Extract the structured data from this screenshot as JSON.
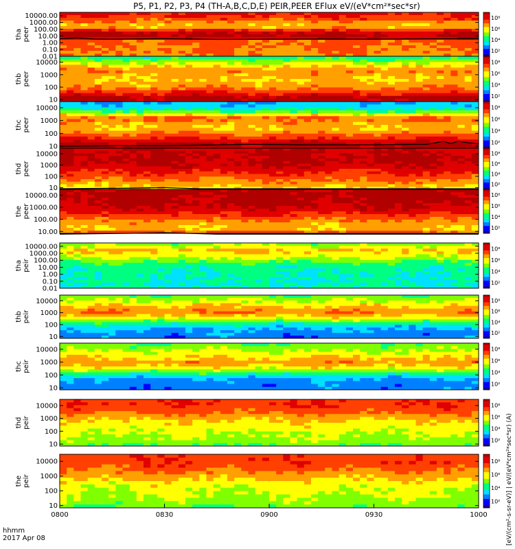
{
  "chart_data": {
    "type": "heatmap",
    "title": "P5, P1, P2, P3, P4 (TH-A,B,C,D,E) PEIR,PEER EFlux eV/(eV*cm²*sec*sr)",
    "time_axis": {
      "ticks": [
        "0800",
        "0830",
        "0900",
        "0930",
        "1000"
      ],
      "range": [
        "08:00",
        "10:00"
      ],
      "label_line1": "hhmm",
      "label_line2": "2017 Apr 08"
    },
    "colorbar": {
      "ticks": [
        "10⁸",
        "10⁶",
        "10⁴",
        "10²"
      ],
      "log_range": [
        1,
        9
      ],
      "side_label": "[eV/(cm²-s-sr-eV)] | eV/(eV*cm²*sec*sr) (A)"
    },
    "colormap": [
      "#1a0080",
      "#0000ff",
      "#0080ff",
      "#00e0ff",
      "#00ff80",
      "#80ff00",
      "#ffff00",
      "#ffa000",
      "#ff4000",
      "#e00000",
      "#b00000"
    ],
    "panels": [
      {
        "label1": "tha",
        "label2": "peer",
        "y_ticks": [
          "10000.00",
          "1000.00",
          "100.00",
          "10.00",
          "1.00",
          "0.10",
          "0.01"
        ],
        "ylim": [
          0.01,
          30000
        ],
        "profile": [
          [
            0.01,
            6.8
          ],
          [
            2.5,
            7.2
          ],
          [
            3.5,
            8.2
          ],
          [
            10,
            8.8
          ],
          [
            40,
            8.6
          ],
          [
            120,
            7.0
          ],
          [
            250,
            6.2
          ],
          [
            600,
            6.4
          ],
          [
            2500,
            7.4
          ],
          [
            12000,
            7.8
          ],
          [
            30000,
            8.2
          ]
        ],
        "overlay": {
          "x": [
            0,
            5,
            10,
            15,
            20,
            30,
            45,
            60,
            75,
            90,
            105,
            120
          ],
          "y": [
            4.0,
            5.0,
            3.5,
            3.2,
            3.5,
            4.0,
            3.0,
            3.2,
            3.5,
            3.3,
            3.8,
            4.0
          ]
        }
      },
      {
        "label1": "thb",
        "label2": "peer",
        "y_ticks": [
          "10000",
          "1000",
          "100",
          "10"
        ],
        "ylim": [
          7,
          30000
        ],
        "profile": [
          [
            7,
            9.0
          ],
          [
            15,
            8.8
          ],
          [
            40,
            7.6
          ],
          [
            120,
            6.7
          ],
          [
            300,
            6.2
          ],
          [
            800,
            6.4
          ],
          [
            2000,
            6.9
          ],
          [
            5000,
            6.1
          ],
          [
            12000,
            5.0
          ],
          [
            30000,
            4.0
          ]
        ]
      },
      {
        "label1": "thc",
        "label2": "peer",
        "y_ticks": [
          "10000",
          "1000",
          "100",
          "10"
        ],
        "ylim": [
          7,
          30000
        ],
        "profile": [
          [
            7,
            9.0
          ],
          [
            15,
            8.8
          ],
          [
            40,
            7.8
          ],
          [
            100,
            6.9
          ],
          [
            250,
            6.2
          ],
          [
            600,
            6.6
          ],
          [
            1500,
            7.2
          ],
          [
            4000,
            5.0
          ],
          [
            10000,
            3.4
          ],
          [
            30000,
            3.0
          ]
        ],
        "overlay": {
          "x": [
            0,
            15,
            30,
            45,
            55,
            70,
            90,
            105,
            110,
            112,
            114,
            120
          ],
          "y": [
            10,
            11,
            11,
            13,
            14,
            13,
            13,
            14,
            24,
            16,
            24,
            15
          ]
        }
      },
      {
        "label1": "thd",
        "label2": "peer",
        "y_ticks": [
          "10000",
          "1000",
          "100",
          "10"
        ],
        "ylim": [
          7,
          30000
        ],
        "profile": [
          [
            7,
            6.0
          ],
          [
            15,
            6.3
          ],
          [
            40,
            7.0
          ],
          [
            100,
            7.4
          ],
          [
            300,
            8.0
          ],
          [
            1000,
            8.6
          ],
          [
            3000,
            8.8
          ],
          [
            10000,
            8.7
          ],
          [
            30000,
            8.4
          ]
        ],
        "overlay": {
          "x": [
            0,
            20,
            30,
            40,
            60,
            90,
            120
          ],
          "y": [
            8,
            9,
            10,
            8,
            8,
            8,
            8
          ]
        }
      },
      {
        "label1": "the",
        "label2": "peer",
        "y_ticks": [
          "10000.00",
          "1000.00",
          "100.00",
          "10.00"
        ],
        "ylim": [
          7,
          30000
        ],
        "profile": [
          [
            7,
            7.6
          ],
          [
            15,
            6.4
          ],
          [
            40,
            6.5
          ],
          [
            100,
            7.1
          ],
          [
            300,
            7.9
          ],
          [
            1000,
            8.6
          ],
          [
            3000,
            8.8
          ],
          [
            10000,
            8.9
          ],
          [
            30000,
            8.8
          ]
        ],
        "overlay": {
          "x": [
            0,
            20,
            30,
            45,
            60,
            90,
            120
          ],
          "y": [
            6,
            7,
            8,
            6,
            6,
            6,
            6
          ]
        }
      },
      {
        "label1": "tha",
        "label2": "peir",
        "y_ticks": [
          "10000.00",
          "1000.00",
          "100.00",
          "10.00",
          "1.00",
          "0.10",
          "0.01"
        ],
        "ylim": [
          0.01,
          30000
        ],
        "profile": [
          [
            0.01,
            3.8
          ],
          [
            1,
            3.9
          ],
          [
            10,
            4.0
          ],
          [
            50,
            4.5
          ],
          [
            200,
            5.4
          ],
          [
            1000,
            6.1
          ],
          [
            3000,
            6.3
          ],
          [
            10000,
            5.4
          ],
          [
            30000,
            4.9
          ]
        ]
      },
      {
        "label1": "thb",
        "label2": "peir",
        "y_ticks": [
          "10000",
          "1000",
          "100",
          "10"
        ],
        "ylim": [
          7,
          30000
        ],
        "profile": [
          [
            7,
            2.5
          ],
          [
            20,
            2.7
          ],
          [
            60,
            3.1
          ],
          [
            150,
            4.4
          ],
          [
            400,
            6.0
          ],
          [
            1200,
            7.0
          ],
          [
            3000,
            6.3
          ],
          [
            10000,
            5.4
          ],
          [
            30000,
            4.7
          ]
        ]
      },
      {
        "label1": "thc",
        "label2": "peir",
        "y_ticks": [
          "10000",
          "1000",
          "100",
          "10"
        ],
        "ylim": [
          7,
          30000
        ],
        "profile": [
          [
            7,
            2.5
          ],
          [
            20,
            2.6
          ],
          [
            60,
            3.0
          ],
          [
            150,
            4.5
          ],
          [
            400,
            6.0
          ],
          [
            1000,
            6.7
          ],
          [
            3000,
            5.9
          ],
          [
            10000,
            5.2
          ],
          [
            30000,
            4.6
          ]
        ]
      },
      {
        "label1": "thd",
        "label2": "peir",
        "y_ticks": [
          "10000",
          "1000",
          "100",
          "10"
        ],
        "ylim": [
          7,
          30000
        ],
        "profile": [
          [
            7,
            4.6
          ],
          [
            20,
            5.2
          ],
          [
            80,
            5.5
          ],
          [
            300,
            5.8
          ],
          [
            1000,
            6.4
          ],
          [
            3000,
            7.2
          ],
          [
            10000,
            7.7
          ],
          [
            30000,
            7.6
          ]
        ]
      },
      {
        "label1": "the",
        "label2": "peir",
        "y_ticks": [
          "10000",
          "1000",
          "100",
          "10"
        ],
        "ylim": [
          7,
          30000
        ],
        "profile": [
          [
            7,
            4.6
          ],
          [
            20,
            5.2
          ],
          [
            80,
            5.5
          ],
          [
            300,
            5.8
          ],
          [
            1000,
            6.5
          ],
          [
            3000,
            7.2
          ],
          [
            10000,
            7.6
          ],
          [
            30000,
            7.5
          ]
        ]
      }
    ]
  }
}
